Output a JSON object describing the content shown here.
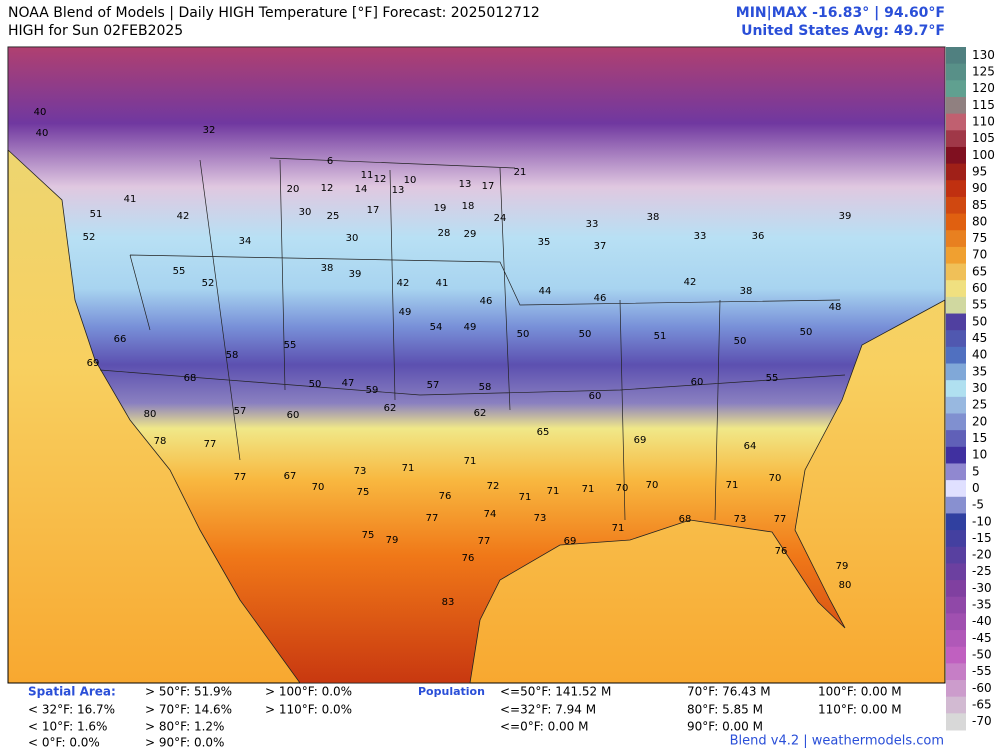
{
  "header": {
    "title": "NOAA Blend of Models | Daily HIGH Temperature [°F] Forecast: 2025012712",
    "subtitle": "HIGH for Sun 02FEB2025",
    "minmax": "MIN|MAX -16.83°  | 94.60°F",
    "average": "United States Avg: 49.7°F"
  },
  "colorbar": {
    "ticks": [
      130,
      125,
      120,
      115,
      110,
      105,
      100,
      95,
      90,
      85,
      80,
      75,
      70,
      65,
      60,
      55,
      50,
      45,
      40,
      35,
      30,
      25,
      20,
      15,
      10,
      5,
      0,
      -5,
      -10,
      -15,
      -20,
      -25,
      -30,
      -35,
      -40,
      -45,
      -50,
      -55,
      -60,
      -65,
      -70
    ]
  },
  "map": {
    "labels": [
      40,
      40,
      32,
      6,
      11,
      12,
      10,
      13,
      17,
      21,
      20,
      12,
      14,
      13,
      51,
      41,
      42,
      30,
      25,
      17,
      19,
      18,
      24,
      33,
      38,
      33,
      36,
      39,
      52,
      34,
      30,
      28,
      29,
      35,
      37,
      55,
      52,
      38,
      39,
      42,
      41,
      46,
      44,
      46,
      42,
      38,
      48,
      66,
      58,
      55,
      49,
      54,
      49,
      50,
      50,
      51,
      50,
      50,
      69,
      68,
      50,
      47,
      59,
      57,
      58,
      60,
      60,
      55,
      80,
      57,
      60,
      62,
      62,
      65,
      69,
      64,
      78,
      77,
      77,
      67,
      73,
      71,
      71,
      71,
      70,
      71,
      70,
      70,
      75,
      76,
      72,
      71,
      71,
      70,
      77,
      74,
      73,
      71,
      68,
      73,
      77,
      75,
      79,
      77,
      69,
      76,
      76,
      83,
      79,
      80
    ]
  },
  "footer": {
    "spatial_area": {
      "label": "Spatial Area:",
      "items": [
        "< 32°F: 16.7%",
        "< 10°F: 1.6%",
        "< 0°F: 0.0%",
        "> 50°F: 51.9%",
        "> 70°F: 14.6%",
        "> 80°F: 1.2%",
        "> 90°F: 0.0%",
        "> 100°F: 0.0%",
        "> 110°F: 0.0%"
      ]
    },
    "population": {
      "label": "Population",
      "items": [
        "<=50°F: 141.52 M",
        "<=32°F: 7.94 M",
        "<=0°F: 0.00 M",
        "70°F: 76.43 M",
        "80°F: 5.85 M",
        "90°F: 0.00 M",
        "100°F: 0.00 M",
        "110°F: 0.00 M"
      ]
    },
    "credit": "Blend v4.2 | weathermodels.com"
  }
}
